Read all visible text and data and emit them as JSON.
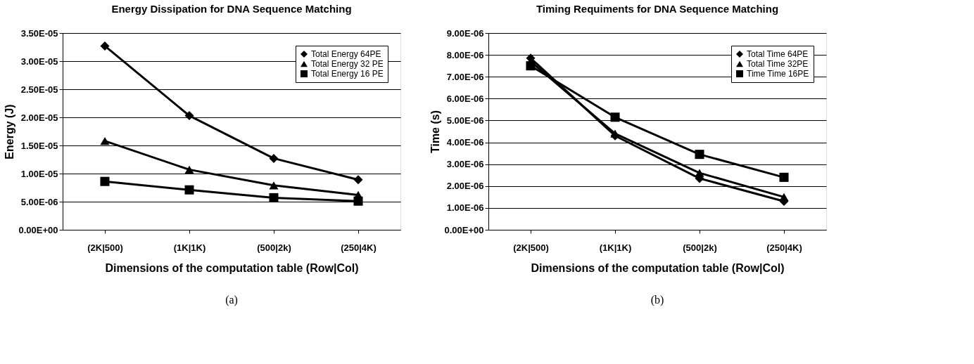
{
  "chart_data": [
    {
      "type": "line",
      "title": "Energy Dissipation for DNA Sequence Matching",
      "xlabel": "Dimensions of the computation table (Row|Col)",
      "ylabel": "Energy (J)",
      "categories": [
        "(2K|500)",
        "(1K|1K)",
        "(500|2k)",
        "(250|4K)"
      ],
      "series": [
        {
          "name": "Total Energy 64PE",
          "color": "#000000",
          "marker": "diamond",
          "values": [
            3.27e-05,
            2.03e-05,
            1.27e-05,
            8.9e-06
          ]
        },
        {
          "name": "Total Energy 32 PE",
          "color": "#000000",
          "marker": "triangle",
          "values": [
            1.58e-05,
            1.07e-05,
            7.9e-06,
            6.2e-06
          ]
        },
        {
          "name": "Total Energy 16 PE",
          "color": "#000000",
          "marker": "square",
          "values": [
            8.6e-06,
            7.1e-06,
            5.7e-06,
            5.1e-06
          ]
        }
      ],
      "ylim": [
        0,
        3.5e-05
      ],
      "yticks": [
        {
          "value": 0,
          "label": "0.00E+00"
        },
        {
          "value": 5e-06,
          "label": "5.00E-06"
        },
        {
          "value": 1e-05,
          "label": "1.00E-05"
        },
        {
          "value": 1.5e-05,
          "label": "1.50E-05"
        },
        {
          "value": 2e-05,
          "label": "2.00E-05"
        },
        {
          "value": 2.5e-05,
          "label": "2.50E-05"
        },
        {
          "value": 3e-05,
          "label": "3.00E-05"
        },
        {
          "value": 3.5e-05,
          "label": "3.50E-05"
        }
      ],
      "grid": "y",
      "legend": "top right",
      "annotations": [
        "(a)"
      ]
    },
    {
      "type": "line",
      "title": "Timing Requiments for DNA Sequence Matching",
      "xlabel": "Dimensions of the computation table (Row|Col)",
      "ylabel": "Time (s)",
      "categories": [
        "(2K|500)",
        "(1K|1K)",
        "(500|2k)",
        "(250|4K)"
      ],
      "series": [
        {
          "name": "Total Time 64PE",
          "color": "#000000",
          "marker": "diamond",
          "values": [
            7.85e-06,
            4.3e-06,
            2.35e-06,
            1.3e-06
          ]
        },
        {
          "name": "Total Time 32PE",
          "color": "#000000",
          "marker": "triangle",
          "values": [
            7.7e-06,
            4.4e-06,
            2.6e-06,
            1.5e-06
          ]
        },
        {
          "name": "Time Time 16PE",
          "color": "#000000",
          "marker": "square",
          "values": [
            7.5e-06,
            5.15e-06,
            3.45e-06,
            2.4e-06
          ]
        }
      ],
      "ylim": [
        0,
        9e-06
      ],
      "yticks": [
        {
          "value": 0,
          "label": "0.00E+00"
        },
        {
          "value": 1e-06,
          "label": "1.00E-06"
        },
        {
          "value": 2e-06,
          "label": "2.00E-06"
        },
        {
          "value": 3e-06,
          "label": "3.00E-06"
        },
        {
          "value": 4e-06,
          "label": "4.00E-06"
        },
        {
          "value": 5e-06,
          "label": "5.00E-06"
        },
        {
          "value": 6e-06,
          "label": "6.00E-06"
        },
        {
          "value": 7e-06,
          "label": "7.00E-06"
        },
        {
          "value": 8e-06,
          "label": "8.00E-06"
        },
        {
          "value": 9e-06,
          "label": "9.00E-06"
        }
      ],
      "grid": "y",
      "legend": "top right",
      "annotations": [
        "(b)"
      ]
    }
  ]
}
